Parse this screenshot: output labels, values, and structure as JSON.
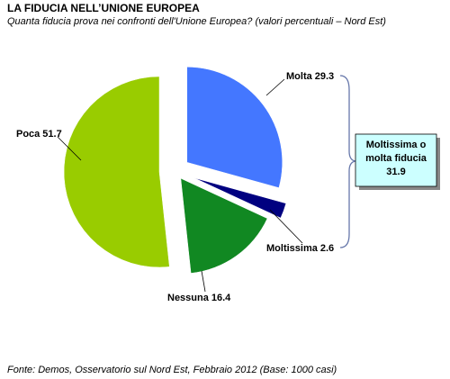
{
  "chart_data": {
    "type": "pie",
    "title": "LA FIDUCIA NELL’UNIONE EUROPEA",
    "subtitle": "Quanta fiducia prova nei confronti dell'Unione Europea? (valori percentuali – Nord Est)",
    "categories": [
      "Molta",
      "Moltissima",
      "Nessuna",
      "Poca"
    ],
    "values": [
      29.3,
      2.6,
      16.4,
      51.7
    ],
    "colors": [
      "#4477ff",
      "#000080",
      "#118822",
      "#99cc00"
    ],
    "annotation": {
      "text": "Moltissima o molta fiducia",
      "value": 31.9
    },
    "source": "Fonte: Demos, Osservatorio sul Nord Est, Febbraio 2012 (Base: 1000 casi)"
  }
}
